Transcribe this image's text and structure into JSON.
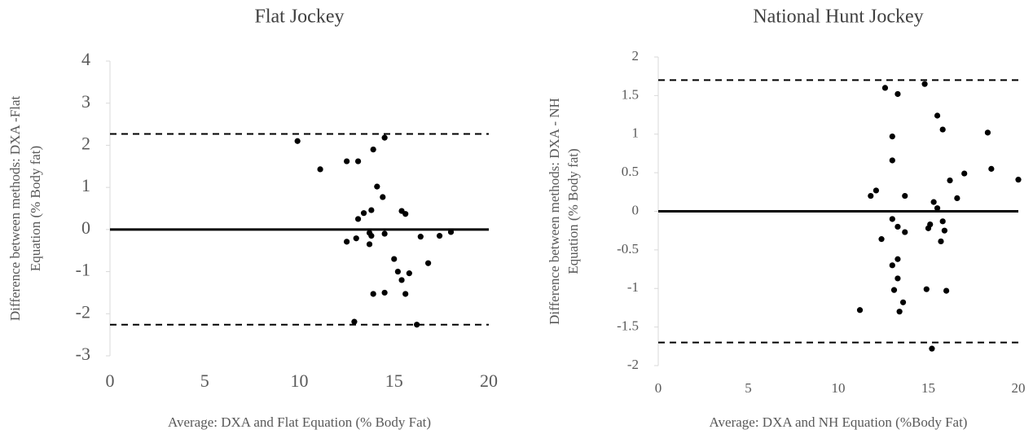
{
  "chart_data": [
    {
      "type": "scatter",
      "title": "Flat Jockey",
      "xlabel": "Average: DXA and Flat Equation (% Body Fat)",
      "ylabel": [
        "Difference between methods: DXA -Flat",
        "Equation (% Body fat)"
      ],
      "color": "#000000",
      "x": [
        9.9,
        11.1,
        12.5,
        13.1,
        13.9,
        14.5,
        14.1,
        14.4,
        13.4,
        13.8,
        13.1,
        15.4,
        15.6,
        13.7,
        13.8,
        14.5,
        12.5,
        13.0,
        13.7,
        16.4,
        17.4,
        18.0,
        15.0,
        15.2,
        15.4,
        15.8,
        16.8,
        13.9,
        14.5,
        15.6,
        12.9,
        16.2
      ],
      "y": [
        2.1,
        1.43,
        1.62,
        1.62,
        1.9,
        2.18,
        1.02,
        0.77,
        0.39,
        0.46,
        0.25,
        0.44,
        0.37,
        -0.08,
        -0.15,
        -0.1,
        -0.29,
        -0.21,
        -0.35,
        -0.17,
        -0.15,
        -0.06,
        -0.7,
        -1.0,
        -1.2,
        -1.04,
        -0.8,
        -1.53,
        -1.5,
        -1.53,
        -2.19,
        -2.26
      ],
      "hlines": [
        {
          "value": 0,
          "style": "solid"
        },
        {
          "value": 2.27,
          "style": "dashed"
        },
        {
          "value": -2.26,
          "style": "dashed"
        }
      ],
      "xlim": [
        0,
        20
      ],
      "xticks": [
        0,
        5,
        10,
        15,
        20
      ],
      "ylim": [
        -3,
        4
      ],
      "yticks": [
        -3,
        -2,
        -1,
        0,
        1,
        2,
        3,
        4
      ]
    },
    {
      "type": "scatter",
      "title": "National Hunt Jockey",
      "xlabel": "Average: DXA and NH Equation (%Body Fat)",
      "ylabel": [
        "Difference between methods: DXA - NH",
        "Equation (% Body fat)"
      ],
      "color": "#000000",
      "x": [
        11.2,
        11.8,
        12.1,
        12.4,
        12.6,
        13.3,
        13.0,
        13.0,
        13.0,
        13.3,
        13.0,
        13.3,
        13.3,
        13.1,
        13.4,
        13.6,
        13.7,
        13.7,
        14.8,
        15.5,
        15.8,
        15.3,
        15.5,
        15.1,
        15.0,
        15.8,
        15.9,
        15.7,
        14.9,
        16.0,
        15.2,
        16.2,
        16.6,
        17.0,
        18.3,
        18.5,
        20.0
      ],
      "y": [
        -1.28,
        0.2,
        0.27,
        -0.36,
        1.6,
        1.52,
        0.97,
        0.66,
        -0.1,
        -0.2,
        -0.7,
        -0.62,
        -0.87,
        -1.02,
        -1.3,
        -1.18,
        0.2,
        -0.27,
        1.65,
        1.24,
        1.06,
        0.12,
        0.04,
        -0.17,
        -0.22,
        -0.13,
        -0.25,
        -0.39,
        -1.01,
        -1.03,
        -1.78,
        0.4,
        0.17,
        0.49,
        1.02,
        0.55,
        0.41
      ],
      "hlines": [
        {
          "value": 0,
          "style": "solid"
        },
        {
          "value": 1.7,
          "style": "dashed"
        },
        {
          "value": -1.7,
          "style": "dashed"
        }
      ],
      "xlim": [
        0,
        20
      ],
      "xticks": [
        0,
        5,
        10,
        15,
        20
      ],
      "ylim": [
        -2,
        2
      ],
      "yticks": [
        -2,
        -1.5,
        -1,
        -0.5,
        0,
        0.5,
        1,
        1.5,
        2
      ]
    }
  ]
}
